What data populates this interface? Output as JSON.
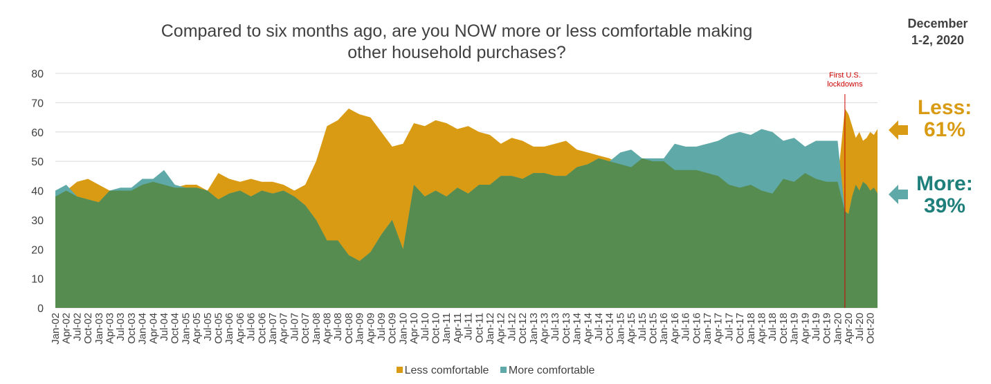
{
  "title_line1": "Compared to six months ago, are you NOW more or less comfortable making",
  "title_line2": "other household purchases?",
  "date_line1": "December",
  "date_line2": "1-2, 2020",
  "annotation_line1": "First U.S.",
  "annotation_line2": "lockdowns",
  "callouts": {
    "less_line1": "Less:",
    "less_line2": "61%",
    "more_line1": "More:",
    "more_line2": "39%"
  },
  "legend": {
    "less": "Less comfortable",
    "more": "More comfortable"
  },
  "colors": {
    "less": "#D99B14",
    "more": "#5FAAA8",
    "overlap": "#578C50",
    "more_text": "#1F7F7A",
    "annotation": "#CC0000",
    "grid": "#D9D9D9"
  },
  "chart_data": {
    "type": "area",
    "ylim": [
      0,
      80
    ],
    "yticks": [
      0,
      10,
      20,
      30,
      40,
      50,
      60,
      70,
      80
    ],
    "xtick_labels": [
      "Jan-02",
      "Apr-02",
      "Jul-02",
      "Oct-02",
      "Jan-03",
      "Apr-03",
      "Jul-03",
      "Oct-03",
      "Jan-04",
      "Apr-04",
      "Jul-04",
      "Oct-04",
      "Jan-05",
      "Apr-05",
      "Jul-05",
      "Oct-05",
      "Jan-06",
      "Apr-06",
      "Jul-06",
      "Oct-06",
      "Jan-07",
      "Apr-07",
      "Jul-07",
      "Oct-07",
      "Jan-08",
      "Apr-08",
      "Jul-08",
      "Oct-08",
      "Jan-09",
      "Apr-09",
      "Jul-09",
      "Oct-09",
      "Jan-10",
      "Apr-10",
      "Jul-10",
      "Oct-10",
      "Jan-11",
      "Apr-11",
      "Jul-11",
      "Oct-11",
      "Jan-12",
      "Apr-12",
      "Jul-12",
      "Oct-12",
      "Jan-13",
      "Apr-13",
      "Jul-13",
      "Oct-13",
      "Jan-14",
      "Apr-14",
      "Jul-14",
      "Oct-14",
      "Jan-15",
      "Apr-15",
      "Jul-15",
      "Oct-15",
      "Jan-16",
      "Apr-16",
      "Jul-16",
      "Oct-16",
      "Jan-17",
      "Apr-17",
      "Jul-17",
      "Oct-17",
      "Jan-18",
      "Apr-18",
      "Jul-18",
      "Oct-18",
      "Jan-19",
      "Apr-19",
      "Jul-19",
      "Oct-19",
      "Jan-20",
      "Apr-20",
      "Jul-20",
      "Oct-20"
    ],
    "vline_x": "Mar-20",
    "series": [
      {
        "name": "Less comfortable",
        "x": [
          "Jan-02",
          "Apr-02",
          "Jul-02",
          "Oct-02",
          "Jan-03",
          "Apr-03",
          "Jul-03",
          "Oct-03",
          "Jan-04",
          "Apr-04",
          "Jul-04",
          "Oct-04",
          "Jan-05",
          "Apr-05",
          "Jul-05",
          "Oct-05",
          "Jan-06",
          "Apr-06",
          "Jul-06",
          "Oct-06",
          "Jan-07",
          "Apr-07",
          "Jul-07",
          "Oct-07",
          "Jan-08",
          "Apr-08",
          "Jul-08",
          "Oct-08",
          "Jan-09",
          "Apr-09",
          "Jul-09",
          "Oct-09",
          "Jan-10",
          "Apr-10",
          "Jul-10",
          "Oct-10",
          "Jan-11",
          "Apr-11",
          "Jul-11",
          "Oct-11",
          "Jan-12",
          "Apr-12",
          "Jul-12",
          "Oct-12",
          "Jan-13",
          "Apr-13",
          "Jul-13",
          "Oct-13",
          "Jan-14",
          "Apr-14",
          "Jul-14",
          "Oct-14",
          "Jan-15",
          "Apr-15",
          "Jul-15",
          "Oct-15",
          "Jan-16",
          "Apr-16",
          "Jul-16",
          "Oct-16",
          "Jan-17",
          "Apr-17",
          "Jul-17",
          "Oct-17",
          "Jan-18",
          "Apr-18",
          "Jul-18",
          "Oct-18",
          "Jan-19",
          "Apr-19",
          "Jul-19",
          "Oct-19",
          "Jan-20",
          "Mar-20",
          "Apr-20",
          "May-20",
          "Jun-20",
          "Jul-20",
          "Aug-20",
          "Sep-20",
          "Oct-20",
          "Nov-20",
          "Dec-20"
        ],
        "values": [
          38,
          40,
          43,
          44,
          42,
          40,
          40,
          40,
          42,
          43,
          42,
          41,
          42,
          42,
          40,
          46,
          44,
          43,
          44,
          43,
          43,
          42,
          40,
          42,
          50,
          62,
          64,
          68,
          66,
          65,
          60,
          55,
          56,
          63,
          62,
          64,
          63,
          61,
          62,
          60,
          59,
          56,
          58,
          57,
          55,
          55,
          56,
          57,
          54,
          53,
          52,
          51,
          49,
          48,
          51,
          50,
          50,
          47,
          47,
          47,
          46,
          45,
          42,
          41,
          42,
          40,
          39,
          44,
          43,
          46,
          44,
          43,
          43,
          68,
          66,
          62,
          58,
          60,
          57,
          58,
          60,
          59,
          61
        ]
      },
      {
        "name": "More comfortable",
        "x": [
          "Jan-02",
          "Apr-02",
          "Jul-02",
          "Oct-02",
          "Jan-03",
          "Apr-03",
          "Jul-03",
          "Oct-03",
          "Jan-04",
          "Apr-04",
          "Jul-04",
          "Oct-04",
          "Jan-05",
          "Apr-05",
          "Jul-05",
          "Oct-05",
          "Jan-06",
          "Apr-06",
          "Jul-06",
          "Oct-06",
          "Jan-07",
          "Apr-07",
          "Jul-07",
          "Oct-07",
          "Jan-08",
          "Apr-08",
          "Jul-08",
          "Oct-08",
          "Jan-09",
          "Apr-09",
          "Jul-09",
          "Oct-09",
          "Jan-10",
          "Apr-10",
          "Jul-10",
          "Oct-10",
          "Jan-11",
          "Apr-11",
          "Jul-11",
          "Oct-11",
          "Jan-12",
          "Apr-12",
          "Jul-12",
          "Oct-12",
          "Jan-13",
          "Apr-13",
          "Jul-13",
          "Oct-13",
          "Jan-14",
          "Apr-14",
          "Jul-14",
          "Oct-14",
          "Jan-15",
          "Apr-15",
          "Jul-15",
          "Oct-15",
          "Jan-16",
          "Apr-16",
          "Jul-16",
          "Oct-16",
          "Jan-17",
          "Apr-17",
          "Jul-17",
          "Oct-17",
          "Jan-18",
          "Apr-18",
          "Jul-18",
          "Oct-18",
          "Jan-19",
          "Apr-19",
          "Jul-19",
          "Oct-19",
          "Jan-20",
          "Mar-20",
          "Apr-20",
          "May-20",
          "Jun-20",
          "Jul-20",
          "Aug-20",
          "Sep-20",
          "Oct-20",
          "Nov-20",
          "Dec-20"
        ],
        "values": [
          40,
          42,
          38,
          37,
          36,
          40,
          41,
          41,
          44,
          44,
          47,
          42,
          41,
          41,
          40,
          37,
          39,
          40,
          38,
          40,
          39,
          40,
          38,
          35,
          30,
          23,
          23,
          18,
          16,
          19,
          25,
          30,
          20,
          42,
          38,
          40,
          38,
          41,
          39,
          42,
          42,
          45,
          45,
          44,
          46,
          46,
          45,
          45,
          48,
          49,
          51,
          50,
          53,
          54,
          51,
          51,
          51,
          56,
          55,
          55,
          56,
          57,
          59,
          60,
          59,
          61,
          60,
          57,
          58,
          55,
          57,
          57,
          57,
          33,
          32,
          38,
          42,
          40,
          43,
          42,
          40,
          41,
          39
        ]
      }
    ]
  }
}
